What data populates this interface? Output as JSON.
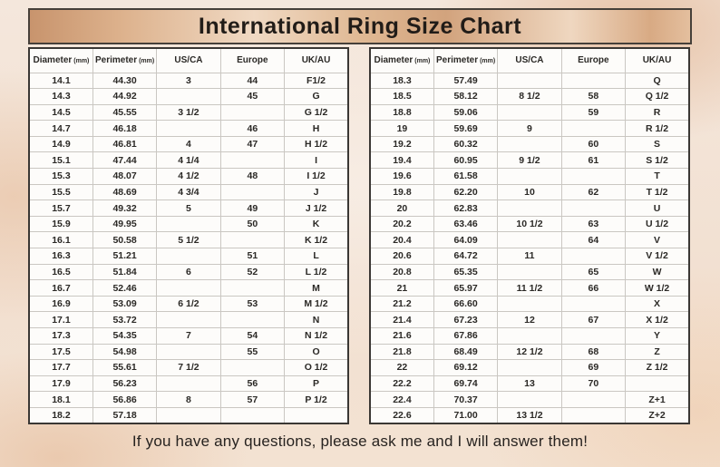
{
  "title": "International Ring Size Chart",
  "footer": "If you have any questions, please ask me and I will answer them!",
  "colors": {
    "page_background": "#f2e0d1",
    "title_bar_tan_dark": "#c8946d",
    "title_bar_tan_light": "#f0d9c3",
    "table_background": "#fdfcfa",
    "grid_line": "#cac7c2",
    "outer_border": "#3a3734",
    "text": "#2b2926"
  },
  "chart_data": [
    {
      "type": "table",
      "title": "International Ring Size Chart (left half)",
      "columns": [
        "Diameter",
        "Perimeter",
        "US/CA",
        "Europe",
        "UK/AU"
      ],
      "column_units": [
        "(mm)",
        "(mm)",
        "",
        "",
        ""
      ],
      "rows": [
        [
          "14.1",
          "44.30",
          "3",
          "44",
          "F1/2"
        ],
        [
          "14.3",
          "44.92",
          "",
          "45",
          "G"
        ],
        [
          "14.5",
          "45.55",
          "3 1/2",
          "",
          "G 1/2"
        ],
        [
          "14.7",
          "46.18",
          "",
          "46",
          "H"
        ],
        [
          "14.9",
          "46.81",
          "4",
          "47",
          "H 1/2"
        ],
        [
          "15.1",
          "47.44",
          "4 1/4",
          "",
          "I"
        ],
        [
          "15.3",
          "48.07",
          "4 1/2",
          "48",
          "I 1/2"
        ],
        [
          "15.5",
          "48.69",
          "4 3/4",
          "",
          "J"
        ],
        [
          "15.7",
          "49.32",
          "5",
          "49",
          "J 1/2"
        ],
        [
          "15.9",
          "49.95",
          "",
          "50",
          "K"
        ],
        [
          "16.1",
          "50.58",
          "5 1/2",
          "",
          "K 1/2"
        ],
        [
          "16.3",
          "51.21",
          "",
          "51",
          "L"
        ],
        [
          "16.5",
          "51.84",
          "6",
          "52",
          "L 1/2"
        ],
        [
          "16.7",
          "52.46",
          "",
          "",
          "M"
        ],
        [
          "16.9",
          "53.09",
          "6 1/2",
          "53",
          "M 1/2"
        ],
        [
          "17.1",
          "53.72",
          "",
          "",
          "N"
        ],
        [
          "17.3",
          "54.35",
          "7",
          "54",
          "N 1/2"
        ],
        [
          "17.5",
          "54.98",
          "",
          "55",
          "O"
        ],
        [
          "17.7",
          "55.61",
          "7 1/2",
          "",
          "O 1/2"
        ],
        [
          "17.9",
          "56.23",
          "",
          "56",
          "P"
        ],
        [
          "18.1",
          "56.86",
          "8",
          "57",
          "P 1/2"
        ],
        [
          "18.2",
          "57.18",
          "",
          "",
          ""
        ]
      ]
    },
    {
      "type": "table",
      "title": "International Ring Size Chart (right half)",
      "columns": [
        "Diameter",
        "Perimeter",
        "US/CA",
        "Europe",
        "UK/AU"
      ],
      "column_units": [
        "(mm)",
        "(mm)",
        "",
        "",
        ""
      ],
      "rows": [
        [
          "18.3",
          "57.49",
          "",
          "",
          "Q"
        ],
        [
          "18.5",
          "58.12",
          "8 1/2",
          "58",
          "Q 1/2"
        ],
        [
          "18.8",
          "59.06",
          "",
          "59",
          "R"
        ],
        [
          "19",
          "59.69",
          "9",
          "",
          "R 1/2"
        ],
        [
          "19.2",
          "60.32",
          "",
          "60",
          "S"
        ],
        [
          "19.4",
          "60.95",
          "9 1/2",
          "61",
          "S 1/2"
        ],
        [
          "19.6",
          "61.58",
          "",
          "",
          "T"
        ],
        [
          "19.8",
          "62.20",
          "10",
          "62",
          "T 1/2"
        ],
        [
          "20",
          "62.83",
          "",
          "",
          "U"
        ],
        [
          "20.2",
          "63.46",
          "10 1/2",
          "63",
          "U 1/2"
        ],
        [
          "20.4",
          "64.09",
          "",
          "64",
          "V"
        ],
        [
          "20.6",
          "64.72",
          "11",
          "",
          "V 1/2"
        ],
        [
          "20.8",
          "65.35",
          "",
          "65",
          "W"
        ],
        [
          "21",
          "65.97",
          "11 1/2",
          "66",
          "W 1/2"
        ],
        [
          "21.2",
          "66.60",
          "",
          "",
          "X"
        ],
        [
          "21.4",
          "67.23",
          "12",
          "67",
          "X 1/2"
        ],
        [
          "21.6",
          "67.86",
          "",
          "",
          "Y"
        ],
        [
          "21.8",
          "68.49",
          "12 1/2",
          "68",
          "Z"
        ],
        [
          "22",
          "69.12",
          "",
          "69",
          "Z 1/2"
        ],
        [
          "22.2",
          "69.74",
          "13",
          "70",
          ""
        ],
        [
          "22.4",
          "70.37",
          "",
          "",
          "Z+1"
        ],
        [
          "22.6",
          "71.00",
          "13 1/2",
          "",
          "Z+2"
        ]
      ]
    }
  ]
}
